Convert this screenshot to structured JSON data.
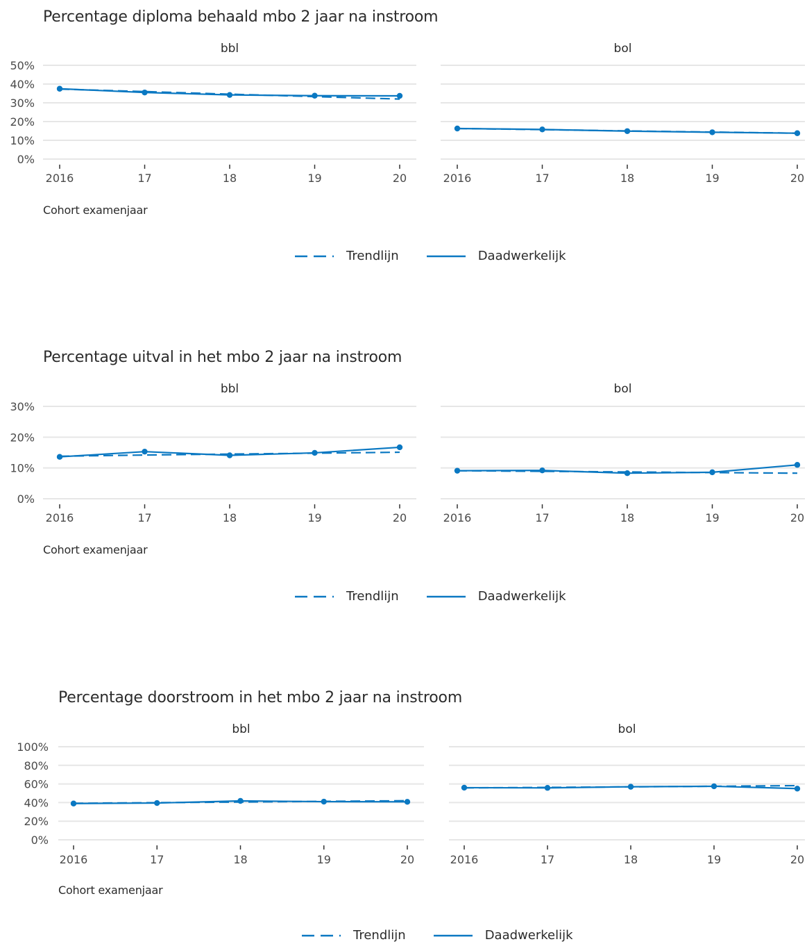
{
  "chart_data": [
    {
      "type": "line",
      "title": "Percentage diploma behaald mbo 2 jaar na instroom",
      "xlabel": "Cohort examenjaar",
      "ylabel": "",
      "x": [
        "2016",
        "17",
        "18",
        "19",
        "20"
      ],
      "yticks": [
        "0%",
        "10%",
        "20%",
        "30%",
        "40%",
        "50%"
      ],
      "ylim": [
        0,
        50
      ],
      "legend": [
        "Trendlijn",
        "Daadwerkelijk"
      ],
      "legend_position": "bottom-center",
      "grid": true,
      "color": "#0a78c2",
      "facets": [
        {
          "name": "bbl",
          "series": [
            {
              "name": "Daadwerkelijk",
              "style": "solid",
              "values": [
                37.5,
                35.5,
                34.2,
                33.8,
                33.7
              ]
            },
            {
              "name": "Trendlijn",
              "style": "dashed",
              "values": [
                37.3,
                36.0,
                34.6,
                33.3,
                32.0
              ]
            }
          ]
        },
        {
          "name": "bol",
          "series": [
            {
              "name": "Daadwerkelijk",
              "style": "solid",
              "values": [
                16.3,
                15.8,
                14.9,
                14.3,
                13.8
              ]
            },
            {
              "name": "Trendlijn",
              "style": "dashed",
              "values": [
                16.3,
                15.7,
                15.0,
                14.4,
                13.8
              ]
            }
          ]
        }
      ]
    },
    {
      "type": "line",
      "title": "Percentage uitval in het mbo 2 jaar na instroom",
      "xlabel": "Cohort examenjaar",
      "ylabel": "",
      "x": [
        "2016",
        "17",
        "18",
        "19",
        "20"
      ],
      "yticks": [
        "0%",
        "10%",
        "20%",
        "30%"
      ],
      "ylim": [
        0,
        30
      ],
      "legend": [
        "Trendlijn",
        "Daadwerkelijk"
      ],
      "legend_position": "bottom-center",
      "grid": true,
      "color": "#0a78c2",
      "facets": [
        {
          "name": "bbl",
          "series": [
            {
              "name": "Daadwerkelijk",
              "style": "solid",
              "values": [
                13.6,
                15.3,
                14.1,
                14.9,
                16.7
              ]
            },
            {
              "name": "Trendlijn",
              "style": "dashed",
              "values": [
                13.8,
                14.2,
                14.5,
                14.8,
                15.1
              ]
            }
          ]
        },
        {
          "name": "bol",
          "series": [
            {
              "name": "Daadwerkelijk",
              "style": "solid",
              "values": [
                9.1,
                9.2,
                8.3,
                8.6,
                11.0
              ]
            },
            {
              "name": "Trendlijn",
              "style": "dashed",
              "values": [
                9.1,
                8.9,
                8.7,
                8.5,
                8.3
              ]
            }
          ]
        }
      ]
    },
    {
      "type": "line",
      "title": "Percentage doorstroom in het mbo 2 jaar na instroom",
      "xlabel": "Cohort examenjaar",
      "ylabel": "",
      "x": [
        "2016",
        "17",
        "18",
        "19",
        "20"
      ],
      "yticks": [
        "0%",
        "20%",
        "40%",
        "60%",
        "80%",
        "100%"
      ],
      "ylim": [
        0,
        100
      ],
      "legend": [
        "Trendlijn",
        "Daadwerkelijk"
      ],
      "legend_position": "bottom-center",
      "grid": true,
      "color": "#0a78c2",
      "facets": [
        {
          "name": "bbl",
          "series": [
            {
              "name": "Daadwerkelijk",
              "style": "solid",
              "values": [
                39.0,
                39.5,
                41.8,
                41.0,
                40.8
              ]
            },
            {
              "name": "Trendlijn",
              "style": "dashed",
              "values": [
                39.2,
                39.9,
                40.6,
                41.3,
                42.0
              ]
            }
          ]
        },
        {
          "name": "bol",
          "series": [
            {
              "name": "Daadwerkelijk",
              "style": "solid",
              "values": [
                56.0,
                55.8,
                57.0,
                57.5,
                55.0
              ]
            },
            {
              "name": "Trendlijn",
              "style": "dashed",
              "values": [
                55.8,
                56.3,
                56.9,
                57.5,
                58.2
              ]
            }
          ]
        }
      ]
    }
  ]
}
